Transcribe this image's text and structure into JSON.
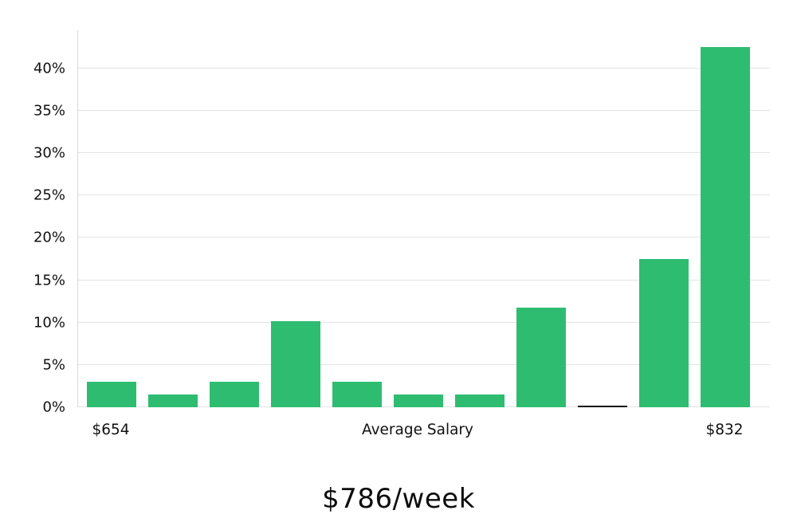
{
  "title": "$786/week",
  "chart_data": {
    "type": "bar",
    "title": "$786/week",
    "xlabel": "",
    "ylabel": "",
    "categories": [
      "bin-1",
      "bin-2",
      "bin-3",
      "bin-4",
      "bin-5",
      "bin-6",
      "bin-7",
      "bin-8",
      "bin-9",
      "bin-10",
      "bin-11"
    ],
    "values": [
      3.0,
      1.5,
      3.0,
      10.2,
      3.0,
      1.5,
      1.5,
      11.8,
      0.1,
      17.5,
      42.5
    ],
    "y_ticks": [
      0,
      5,
      10,
      15,
      20,
      25,
      30,
      35,
      40
    ],
    "y_tick_suffix": "%",
    "ylim": [
      0,
      44.5
    ],
    "x_tick_labels": [
      {
        "label": "$654",
        "bar_index": 0
      },
      {
        "label": "Average Salary",
        "bar_index": 5
      },
      {
        "label": "$832",
        "bar_index": 10
      }
    ],
    "grid": "horizontal",
    "legend": "none",
    "bar_color": "#2ebd70",
    "near_zero_bar_color": "#111111",
    "gridline_color": "#e3e3e3",
    "text_color": "#111111"
  }
}
